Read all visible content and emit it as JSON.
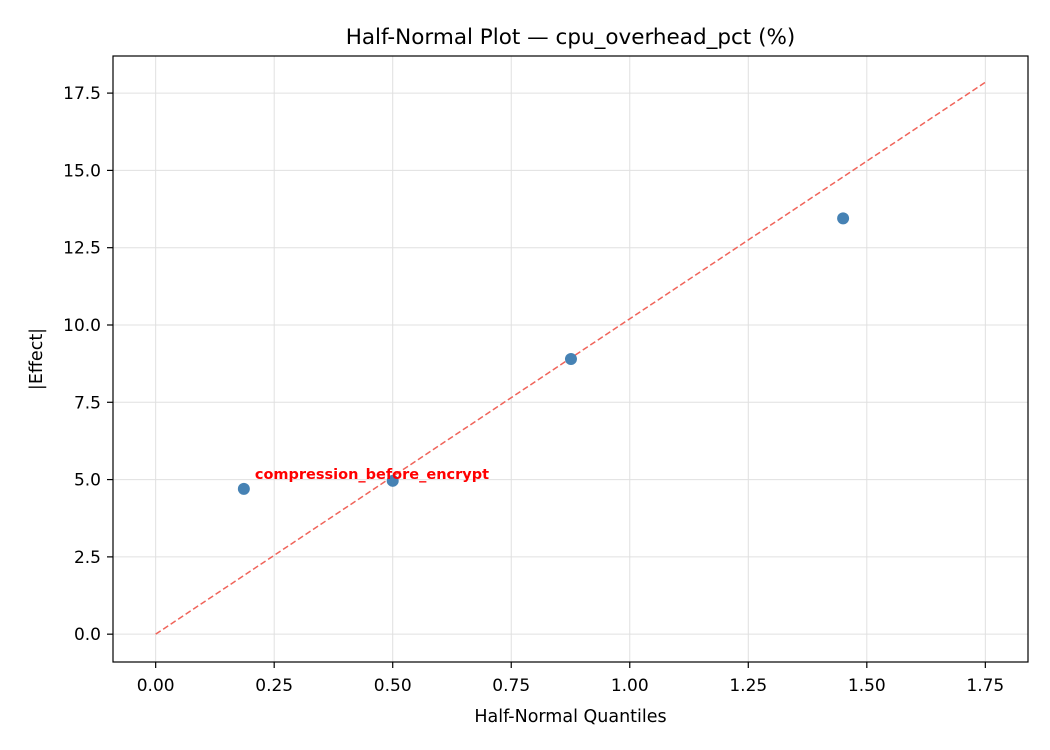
{
  "chart_data": {
    "type": "scatter",
    "title": "Half-Normal Plot — cpu_overhead_pct (%)",
    "xlabel": "Half-Normal Quantiles",
    "ylabel": "|Effect|",
    "xlim": [
      -0.09,
      1.84
    ],
    "ylim": [
      -0.9,
      18.7
    ],
    "x_ticks": [
      0.0,
      0.25,
      0.5,
      0.75,
      1.0,
      1.25,
      1.5,
      1.75
    ],
    "x_tick_labels": [
      "0.00",
      "0.25",
      "0.50",
      "0.75",
      "1.00",
      "1.25",
      "1.50",
      "1.75"
    ],
    "y_ticks": [
      0.0,
      2.5,
      5.0,
      7.5,
      10.0,
      12.5,
      15.0,
      17.5
    ],
    "y_tick_labels": [
      "0.0",
      "2.5",
      "5.0",
      "7.5",
      "10.0",
      "12.5",
      "15.0",
      "17.5"
    ],
    "grid": true,
    "points": [
      {
        "x": 0.186,
        "y": 4.7
      },
      {
        "x": 0.5,
        "y": 4.96
      },
      {
        "x": 0.876,
        "y": 8.9
      },
      {
        "x": 1.45,
        "y": 13.45
      }
    ],
    "reference_line": {
      "x": [
        0.0,
        1.75
      ],
      "y": [
        0.0,
        17.85
      ],
      "style": "dashed"
    },
    "annotations": [
      {
        "text": "compression_before_encrypt",
        "x": 0.186,
        "y": 4.7
      }
    ],
    "colors": {
      "points": "#4682b4",
      "reference_line": "#f0645a",
      "annotation": "#ff0000",
      "grid": "#e0e0e0",
      "axes": "#000000"
    }
  }
}
